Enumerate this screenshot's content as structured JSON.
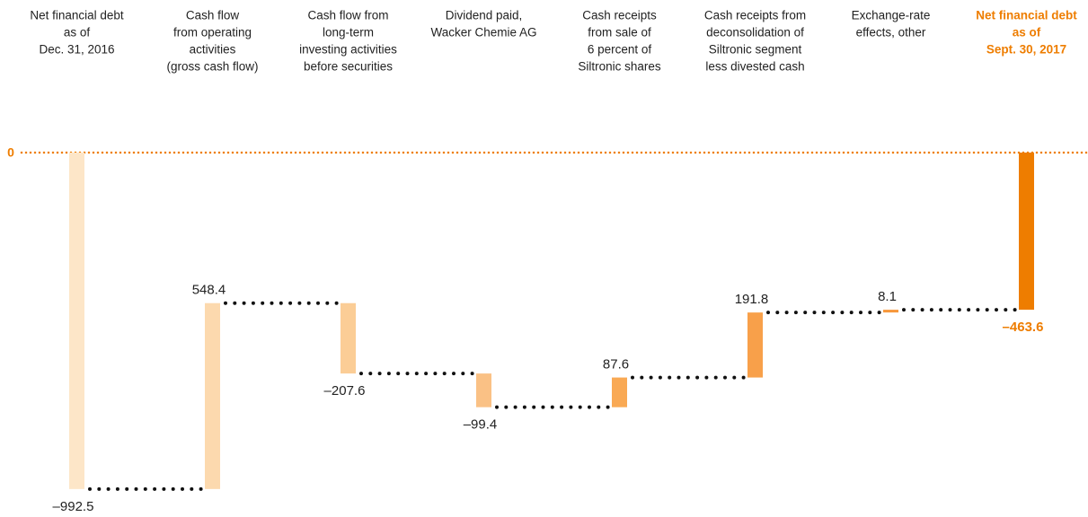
{
  "chart_data": {
    "type": "waterfall",
    "categories": [
      [
        "Net financial debt",
        "as of",
        "Dec. 31, 2016"
      ],
      [
        "Cash flow",
        "from operating",
        "activities",
        "(gross cash flow)"
      ],
      [
        "Cash flow from",
        "long-term",
        "investing activities",
        "before securities"
      ],
      [
        "Dividend paid,",
        "Wacker Chemie AG"
      ],
      [
        "Cash receipts",
        "from sale of",
        "6 percent of",
        "Siltronic shares"
      ],
      [
        "Cash receipts from",
        "deconsolidation of",
        "Siltronic segment",
        "less divested cash"
      ],
      [
        "Exchange-rate",
        "effects, other"
      ],
      [
        "Net financial debt",
        "as of",
        "Sept. 30, 2017"
      ]
    ],
    "values": [
      -992.5,
      548.4,
      -207.6,
      -99.4,
      87.6,
      191.8,
      8.1,
      -463.6
    ],
    "value_labels": [
      "–992.5",
      "548.4",
      "–207.6",
      "–99.4",
      "87.6",
      "191.8",
      "8.1",
      "–463.6"
    ],
    "is_total": [
      true,
      false,
      false,
      false,
      false,
      false,
      false,
      true
    ],
    "colors": [
      "#fde6c8",
      "#fcd9ae",
      "#fbcd96",
      "#fac185",
      "#f9a954",
      "#f8a04a",
      "#f7983c",
      "#ee7d00"
    ],
    "highlight_color": "#ee7d00",
    "ylim": [
      -1030,
      0
    ],
    "yticks": [
      0
    ]
  }
}
